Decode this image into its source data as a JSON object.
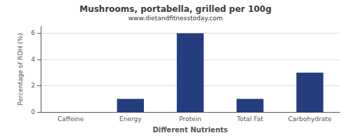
{
  "chart_data": {
    "type": "bar",
    "title": "Mushrooms, portabella, grilled per 100g",
    "subtitle": "www.dietandfitnesstoday.com",
    "xlabel": "Different Nutrients",
    "ylabel": "Percentage of RDH (%)",
    "categories": [
      "Caffeine",
      "Energy",
      "Protein",
      "Total Fat",
      "Carbohydrate"
    ],
    "values": [
      0,
      1.0,
      6.0,
      1.0,
      3.0
    ],
    "color": "#253d7f",
    "ylim": [
      0,
      6.5
    ],
    "yticks": [
      0,
      2,
      4,
      6
    ],
    "grid": true
  }
}
